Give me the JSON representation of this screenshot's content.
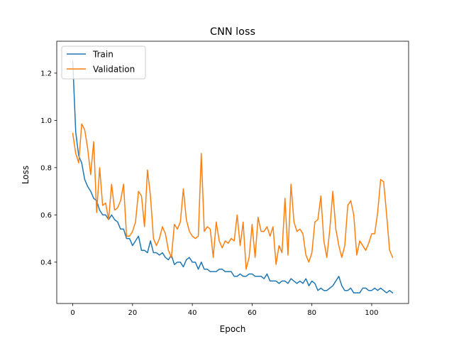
{
  "chart_data": {
    "type": "line",
    "title": "CNN loss",
    "xlabel": "Epoch",
    "ylabel": "Loss",
    "xlim": [
      -5.35,
      112.35
    ],
    "ylim": [
      0.225,
      1.335
    ],
    "xticks": [
      0,
      20,
      40,
      60,
      80,
      100
    ],
    "yticks": [
      0.4,
      0.6,
      0.8,
      1.0,
      1.2
    ],
    "xtick_labels": [
      "0",
      "20",
      "40",
      "60",
      "80",
      "100"
    ],
    "ytick_labels": [
      "0.4",
      "0.6",
      "0.8",
      "1.0",
      "1.2"
    ],
    "grid": false,
    "legend_position": "top-left",
    "series": [
      {
        "name": "Train",
        "color": "#1f77b4",
        "values": [
          1.25,
          0.95,
          0.85,
          0.82,
          0.75,
          0.72,
          0.7,
          0.67,
          0.66,
          0.62,
          0.6,
          0.6,
          0.58,
          0.6,
          0.58,
          0.57,
          0.54,
          0.54,
          0.5,
          0.5,
          0.47,
          0.49,
          0.51,
          0.45,
          0.45,
          0.44,
          0.49,
          0.44,
          0.44,
          0.43,
          0.44,
          0.42,
          0.41,
          0.43,
          0.39,
          0.4,
          0.4,
          0.38,
          0.41,
          0.42,
          0.4,
          0.4,
          0.37,
          0.4,
          0.37,
          0.37,
          0.36,
          0.36,
          0.36,
          0.37,
          0.37,
          0.36,
          0.36,
          0.36,
          0.34,
          0.34,
          0.35,
          0.34,
          0.34,
          0.35,
          0.35,
          0.34,
          0.34,
          0.34,
          0.33,
          0.35,
          0.32,
          0.32,
          0.32,
          0.31,
          0.32,
          0.32,
          0.31,
          0.33,
          0.32,
          0.31,
          0.32,
          0.31,
          0.33,
          0.3,
          0.32,
          0.31,
          0.28,
          0.29,
          0.28,
          0.28,
          0.29,
          0.3,
          0.32,
          0.34,
          0.3,
          0.28,
          0.28,
          0.29,
          0.27,
          0.27,
          0.27,
          0.29,
          0.29,
          0.28,
          0.28,
          0.29,
          0.28,
          0.29,
          0.28,
          0.27,
          0.28,
          0.27
        ]
      },
      {
        "name": "Validation",
        "color": "#ff7f0e",
        "values": [
          0.945,
          0.86,
          0.82,
          0.985,
          0.96,
          0.88,
          0.77,
          0.91,
          0.61,
          0.8,
          0.64,
          0.65,
          0.58,
          0.73,
          0.62,
          0.63,
          0.66,
          0.73,
          0.51,
          0.51,
          0.53,
          0.57,
          0.7,
          0.68,
          0.55,
          0.79,
          0.68,
          0.5,
          0.47,
          0.5,
          0.55,
          0.52,
          0.45,
          0.42,
          0.56,
          0.54,
          0.57,
          0.71,
          0.58,
          0.53,
          0.51,
          0.5,
          0.51,
          0.86,
          0.53,
          0.55,
          0.54,
          0.42,
          0.57,
          0.49,
          0.46,
          0.49,
          0.48,
          0.5,
          0.49,
          0.6,
          0.47,
          0.57,
          0.37,
          0.42,
          0.56,
          0.42,
          0.59,
          0.53,
          0.53,
          0.55,
          0.51,
          0.55,
          0.39,
          0.47,
          0.44,
          0.67,
          0.43,
          0.73,
          0.57,
          0.53,
          0.54,
          0.52,
          0.43,
          0.4,
          0.44,
          0.57,
          0.58,
          0.68,
          0.49,
          0.42,
          0.54,
          0.7,
          0.54,
          0.47,
          0.42,
          0.47,
          0.64,
          0.66,
          0.6,
          0.43,
          0.49,
          0.47,
          0.45,
          0.48,
          0.52,
          0.52,
          0.61,
          0.75,
          0.74,
          0.6,
          0.45,
          0.42
        ]
      }
    ]
  }
}
